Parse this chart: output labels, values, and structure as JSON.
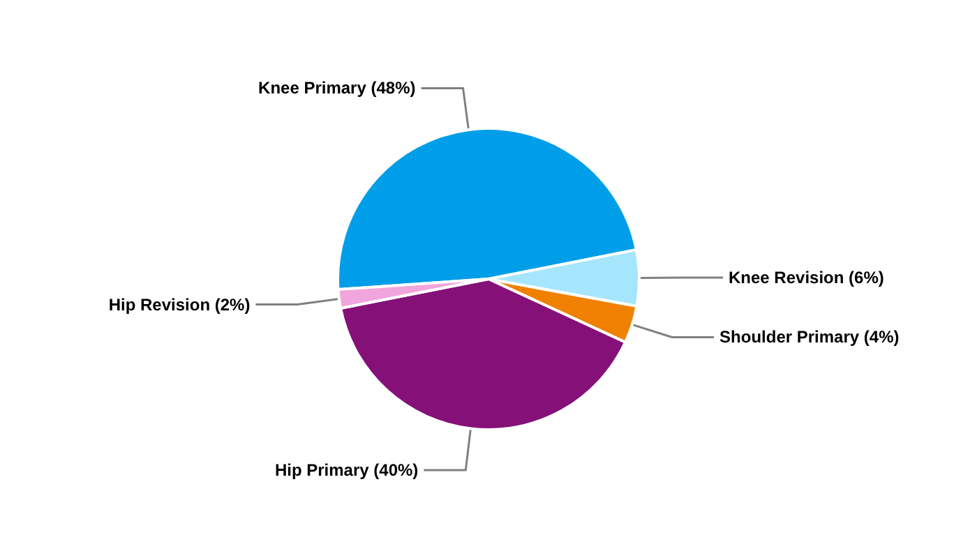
{
  "chart_data": {
    "type": "pie",
    "categories": [
      "Knee Primary (48%)",
      "Knee Revision (6%)",
      "Shoulder Primary (4%)",
      "Hip Primary (40%)",
      "Hip Revision (2%)"
    ],
    "values": [
      48,
      6,
      4,
      40,
      2
    ],
    "colors": [
      "#009ee8",
      "#a6e6fc",
      "#f08000",
      "#851078",
      "#f0a6dc"
    ]
  }
}
